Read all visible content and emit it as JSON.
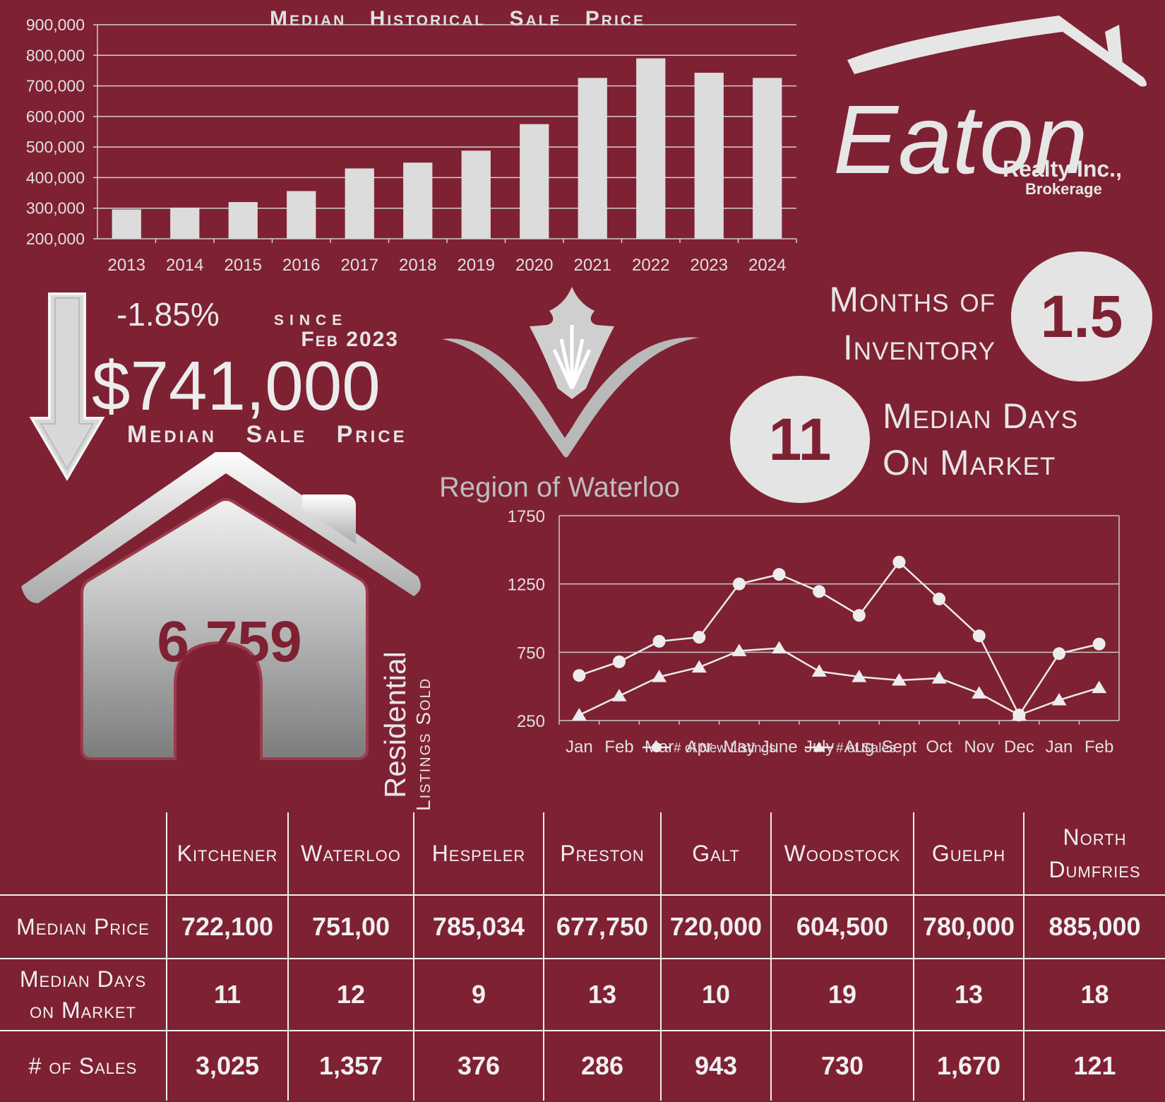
{
  "colors": {
    "background": "#7e2133",
    "foreground": "#e6e6e6",
    "bars": "#dcdcdc",
    "grid": "#cfcfcf"
  },
  "logo": {
    "brand": "Eaton",
    "line1": "Realty Inc.,",
    "line2": "Brokerage"
  },
  "region_logo": {
    "text": "Region of Waterloo"
  },
  "summary": {
    "change": "-1.85%",
    "since_label": "since",
    "since_date": "Feb 2023",
    "median_price": "$741,000",
    "median_price_label": "Median Sale Price",
    "months_label_1": "Months of",
    "months_label_2": "Inventory",
    "months_value": "1.5",
    "days_value": "11",
    "days_label_1": "Median Days",
    "days_label_2": "On Market",
    "listings_sold_value": "6,759",
    "listings_sold_label_1": "Residential",
    "listings_sold_label_2": "Listings Sold"
  },
  "chart_data": [
    {
      "type": "bar",
      "title": "Median Historical Sale Price",
      "categories": [
        "2013",
        "2014",
        "2015",
        "2016",
        "2017",
        "2018",
        "2019",
        "2020",
        "2021",
        "2022",
        "2023",
        "2024"
      ],
      "values": [
        296000,
        302000,
        320000,
        356000,
        430000,
        449000,
        488000,
        575000,
        726000,
        790000,
        743000,
        726000
      ],
      "ylim": [
        200000,
        900000
      ],
      "yticks": [
        "200,000",
        "300,000",
        "400,000",
        "500,000",
        "600,000",
        "700,000",
        "800,000",
        "900,000"
      ],
      "grid": true
    },
    {
      "type": "line",
      "categories": [
        "Jan",
        "Feb",
        "Mar",
        "Apr",
        "May",
        "June",
        "July",
        "Aug",
        "Sept",
        "Oct",
        "Nov",
        "Dec",
        "Jan",
        "Feb"
      ],
      "series": [
        {
          "name": "# of New Listings",
          "marker": "circle",
          "values": [
            580,
            680,
            830,
            860,
            1250,
            1320,
            1195,
            1020,
            1410,
            1140,
            870,
            290,
            740,
            810
          ]
        },
        {
          "name": "# of Sales",
          "marker": "triangle",
          "values": [
            290,
            430,
            570,
            640,
            760,
            780,
            610,
            570,
            545,
            560,
            450,
            290,
            400,
            490
          ]
        }
      ],
      "ylim": [
        250,
        1750
      ],
      "yticks": [
        "250",
        "750",
        "1250",
        "1750"
      ],
      "grid": true,
      "legend": "bottom"
    }
  ],
  "table": {
    "columns": [
      "Kitchener",
      "Waterloo",
      "Hespeler",
      "Preston",
      "Galt",
      "Woodstock",
      "Guelph",
      "North Dumfries"
    ],
    "rows": [
      {
        "label": "Median Price",
        "values": [
          "722,100",
          "751,00",
          "785,034",
          "677,750",
          "720,000",
          "604,500",
          "780,000",
          "885,000"
        ]
      },
      {
        "label": "Median Days on Market",
        "values": [
          "11",
          "12",
          "9",
          "13",
          "10",
          "19",
          "13",
          "18"
        ]
      },
      {
        "label": "# of Sales",
        "values": [
          "3,025",
          "1,357",
          "376",
          "286",
          "943",
          "730",
          "1,670",
          "121"
        ]
      }
    ]
  }
}
